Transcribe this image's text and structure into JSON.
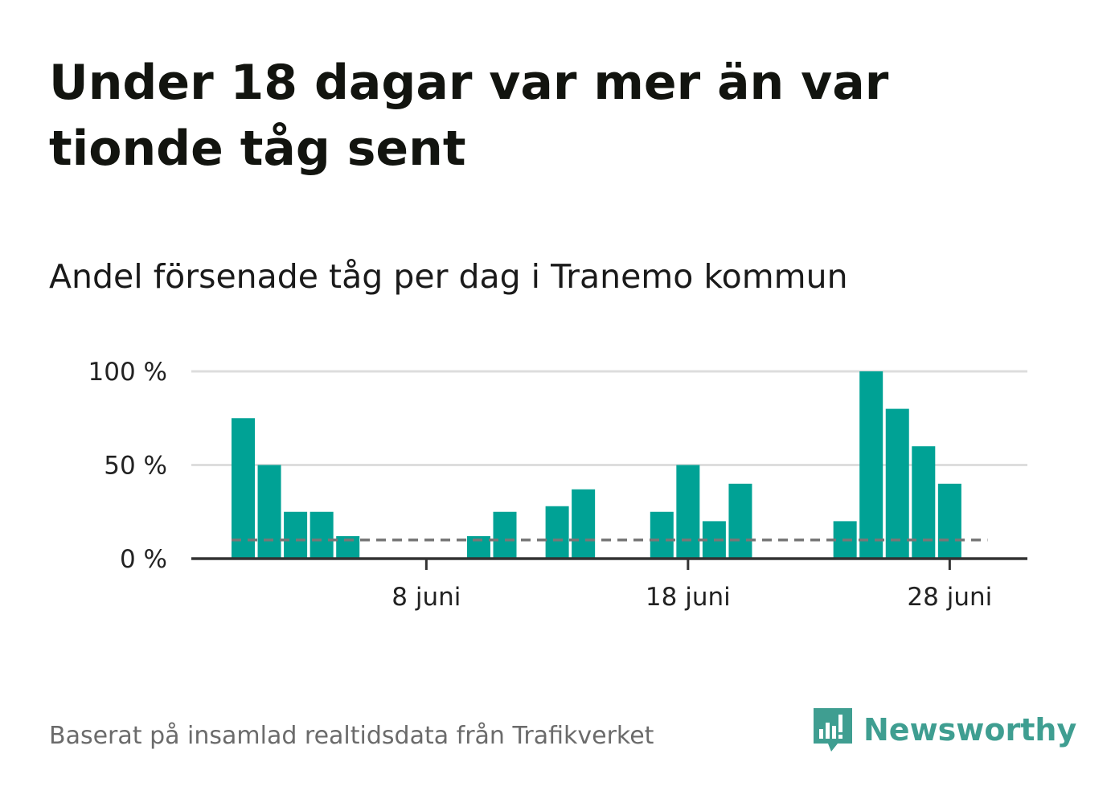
{
  "title": "Under 18 dagar var mer än var tionde tåg sent",
  "subtitle": "Andel försenade tåg per dag i Tranemo kommun",
  "source": "Baserat på insamlad realtidsdata från Trafikverket",
  "brand": {
    "name": "Newsworthy",
    "color": "#3f9e91"
  },
  "chart_data": {
    "type": "bar",
    "title": "Andel försenade tåg per dag i Tranemo kommun",
    "xlabel": "",
    "ylabel": "",
    "days": [
      1,
      2,
      3,
      4,
      5,
      6,
      7,
      8,
      9,
      10,
      11,
      12,
      13,
      14,
      15,
      16,
      17,
      18,
      19,
      20,
      21,
      22,
      23,
      24,
      25,
      26,
      27,
      28,
      29
    ],
    "values": [
      75,
      50,
      25,
      25,
      12,
      0,
      0,
      0,
      0,
      12,
      25,
      0,
      28,
      37,
      0,
      0,
      25,
      50,
      20,
      40,
      0,
      0,
      0,
      20,
      100,
      80,
      60,
      40,
      0
    ],
    "unit": "%",
    "ylim": [
      0,
      100
    ],
    "yticks": [
      0,
      50,
      100
    ],
    "ytick_labels": [
      "0 %",
      "50 %",
      "100 %"
    ],
    "xticks": [
      8,
      18,
      28
    ],
    "xtick_labels": [
      "8 juni",
      "18 juni",
      "28 juni"
    ],
    "reference_line": {
      "value": 10,
      "style": "dashed"
    },
    "colors": {
      "bar": "#00a295",
      "grid": "#dddddd",
      "axis": "#333333",
      "reference": "#777777"
    }
  }
}
